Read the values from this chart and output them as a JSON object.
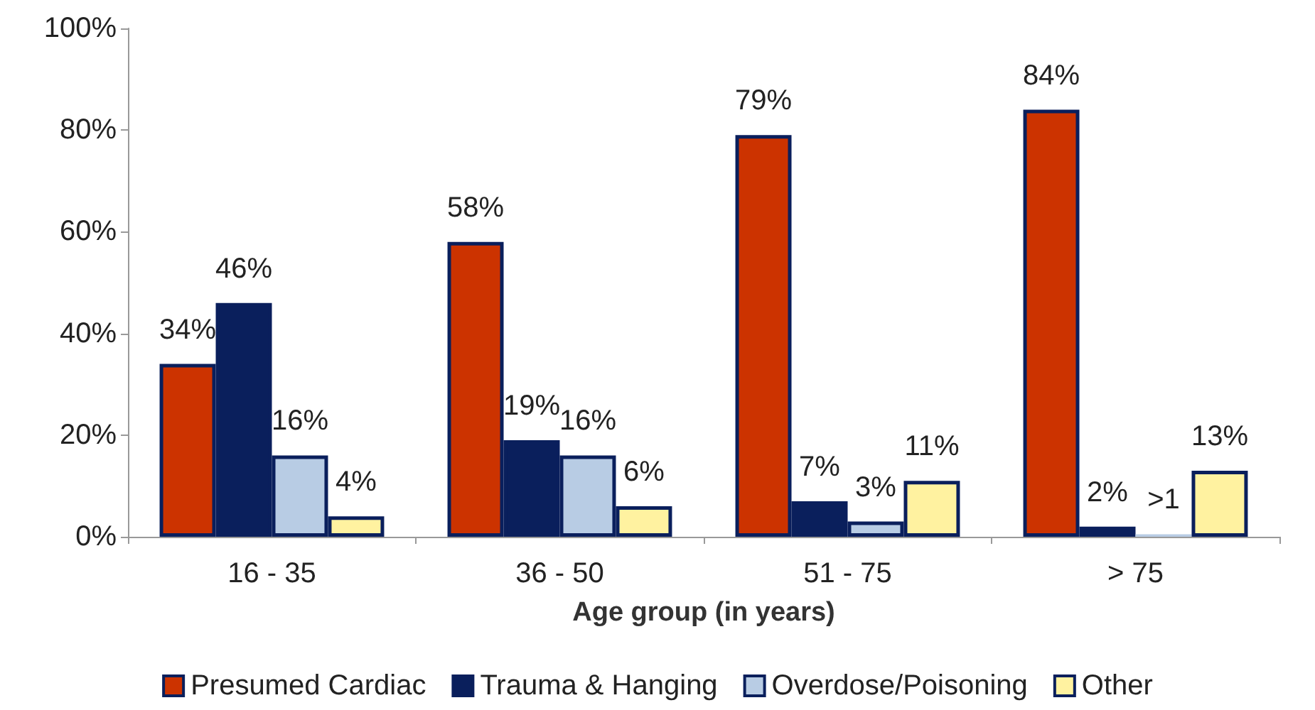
{
  "chart_data": {
    "type": "bar",
    "xlabel": "Age group (in years)",
    "categories": [
      "16 - 35",
      "36 - 50",
      "51 - 75",
      "> 75"
    ],
    "series": [
      {
        "name": "Presumed Cardiac",
        "color": "#cc3300",
        "values": [
          34,
          58,
          79,
          84
        ],
        "value_labels": [
          "34%",
          "58%",
          "79%",
          "84%"
        ]
      },
      {
        "name": "Trauma & Hanging",
        "color": "#0a1f5c",
        "values": [
          46,
          19,
          7,
          2
        ],
        "value_labels": [
          "46%",
          "19%",
          "7%",
          "2%"
        ]
      },
      {
        "name": "Overdose/Poisoning",
        "color": "#b8cce4",
        "values": [
          16,
          16,
          3,
          0.5
        ],
        "value_labels": [
          "16%",
          "16%",
          "3%",
          ">1"
        ]
      },
      {
        "name": "Other",
        "color": "#fff2a0",
        "values": [
          4,
          6,
          11,
          13
        ],
        "value_labels": [
          "4%",
          "6%",
          "11%",
          "13%"
        ]
      }
    ],
    "ylim": [
      0,
      100
    ],
    "yticks": [
      {
        "value": 0,
        "label": "0%"
      },
      {
        "value": 20,
        "label": "20%"
      },
      {
        "value": 40,
        "label": "40%"
      },
      {
        "value": 60,
        "label": "60%"
      },
      {
        "value": 80,
        "label": "80%"
      },
      {
        "value": 100,
        "label": "100%"
      }
    ],
    "grid": false,
    "legend": "bottom"
  }
}
